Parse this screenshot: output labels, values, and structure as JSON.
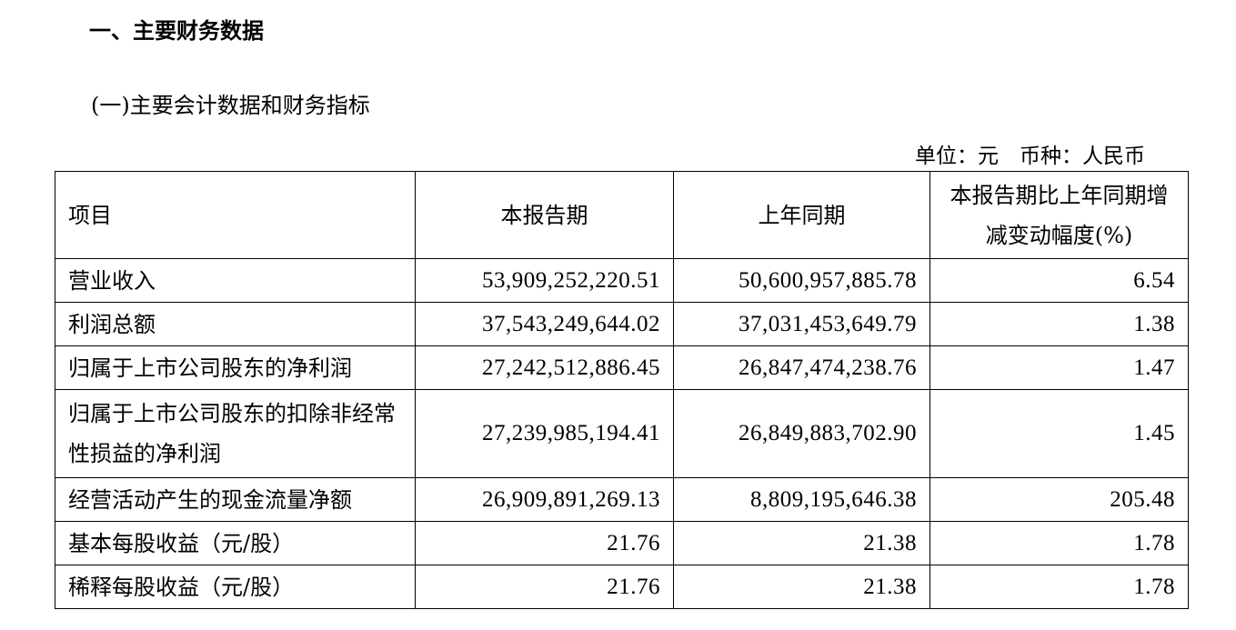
{
  "section_title": "一、主要财务数据",
  "subsection_title": "(一)主要会计数据和财务指标",
  "unit_note": "单位：元　币种：人民币",
  "table": {
    "headers": [
      "项目",
      "本报告期",
      "上年同期",
      "本报告期比上年同期增减变动幅度(%)"
    ],
    "rows": [
      {
        "item": "营业收入",
        "current": "53,909,252,220.51",
        "prior": "50,600,957,885.78",
        "change": "6.54"
      },
      {
        "item": "利润总额",
        "current": "37,543,249,644.02",
        "prior": "37,031,453,649.79",
        "change": "1.38"
      },
      {
        "item": "归属于上市公司股东的净利润",
        "current": "27,242,512,886.45",
        "prior": "26,847,474,238.76",
        "change": "1.47"
      },
      {
        "item": "归属于上市公司股东的扣除非经常性损益的净利润",
        "current": "27,239,985,194.41",
        "prior": "26,849,883,702.90",
        "change": "1.45"
      },
      {
        "item": "经营活动产生的现金流量净额",
        "current": "26,909,891,269.13",
        "prior": "8,809,195,646.38",
        "change": "205.48"
      },
      {
        "item": "基本每股收益（元/股）",
        "current": "21.76",
        "prior": "21.38",
        "change": "1.78"
      },
      {
        "item": "稀释每股收益（元/股）",
        "current": "21.76",
        "prior": "21.38",
        "change": "1.78"
      }
    ]
  }
}
